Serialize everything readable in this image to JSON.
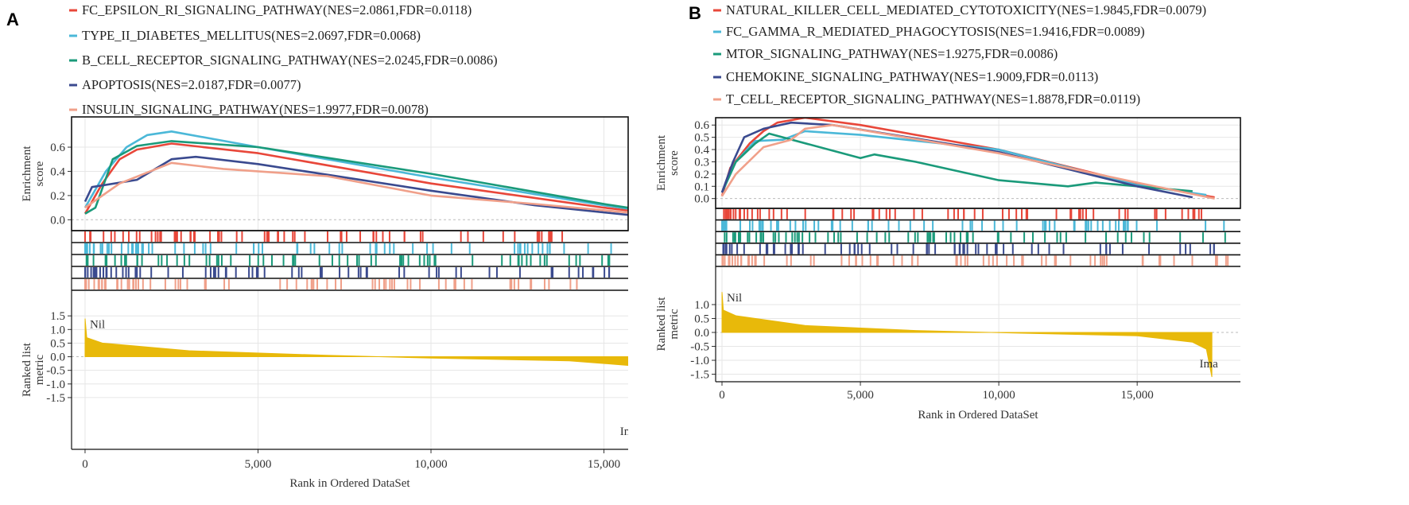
{
  "chart_data": [
    {
      "type": "line",
      "panel_label": "A",
      "xlabel": "Rank in Ordered DataSet",
      "ylabel_es": "Enrichment score",
      "ylabel_rank": [
        "Ranked list",
        "metric"
      ],
      "x_ticks": [
        0,
        5000,
        10000,
        15000
      ],
      "x_tick_labels": [
        "0",
        "5,000",
        "10,000",
        "15,000"
      ],
      "xlim": [
        -390,
        15700
      ],
      "es_ticks": [
        0.0,
        0.2,
        0.4,
        0.6
      ],
      "es_tick_labels": [
        "0.0",
        "0.2",
        "0.4",
        "0.6"
      ],
      "es_ylim": [
        -0.09,
        0.85
      ],
      "rank_ticks": [
        1.5,
        1.0,
        0.5,
        0.0,
        -0.5,
        -1.0,
        -1.5
      ],
      "rank_tick_labels": [
        "1.5",
        "1.0",
        "0.5",
        "0.0",
        "-0.5",
        "-1.0",
        "-1.5"
      ],
      "rank_ylim": [
        -3.4,
        2.44
      ],
      "top_annotation": "Nil",
      "bottom_annotation": "In",
      "series": [
        {
          "name": "FC_EPSILON_RI_SIGNALING_PATHWAY(NES=2.0861,FDR=0.0118)",
          "color": "#e8473a",
          "points": [
            [
              0,
              0.05
            ],
            [
              500,
              0.3
            ],
            [
              1000,
              0.5
            ],
            [
              1500,
              0.58
            ],
            [
              2500,
              0.63
            ],
            [
              5000,
              0.55
            ],
            [
              10000,
              0.3
            ],
            [
              15000,
              0.1
            ],
            [
              17500,
              0.02
            ]
          ]
        },
        {
          "name": "TYPE_II_DIABETES_MELLITUS(NES=2.0697,FDR=0.0068)",
          "color": "#4bb8d8",
          "points": [
            [
              0,
              0.1
            ],
            [
              600,
              0.4
            ],
            [
              1200,
              0.6
            ],
            [
              1800,
              0.7
            ],
            [
              2500,
              0.73
            ],
            [
              5000,
              0.6
            ],
            [
              10000,
              0.35
            ],
            [
              15000,
              0.12
            ],
            [
              17500,
              0.02
            ]
          ]
        },
        {
          "name": "B_CELL_RECEPTOR_SIGNALING_PATHWAY(NES=2.0245,FDR=0.0086)",
          "color": "#1a9a7a",
          "points": [
            [
              0,
              0.05
            ],
            [
              300,
              0.1
            ],
            [
              800,
              0.5
            ],
            [
              1500,
              0.61
            ],
            [
              2500,
              0.65
            ],
            [
              5000,
              0.6
            ],
            [
              10000,
              0.38
            ],
            [
              15000,
              0.13
            ],
            [
              17500,
              0.02
            ]
          ]
        },
        {
          "name": "APOPTOSIS(NES=2.0187,FDR=0.0077)",
          "color": "#3a4a8f",
          "points": [
            [
              0,
              0.15
            ],
            [
              200,
              0.27
            ],
            [
              1500,
              0.33
            ],
            [
              2500,
              0.5
            ],
            [
              3200,
              0.52
            ],
            [
              5000,
              0.46
            ],
            [
              10000,
              0.24
            ],
            [
              13000,
              0.12
            ],
            [
              15700,
              0.04
            ]
          ]
        },
        {
          "name": "INSULIN_SIGNALING_PATHWAY(NES=1.9977,FDR=0.0078)",
          "color": "#f0a08a",
          "points": [
            [
              0,
              0.1
            ],
            [
              1000,
              0.3
            ],
            [
              2500,
              0.47
            ],
            [
              4000,
              0.42
            ],
            [
              7000,
              0.36
            ],
            [
              10000,
              0.2
            ],
            [
              13000,
              0.13
            ],
            [
              15700,
              0.06
            ]
          ]
        }
      ],
      "ranked_metric": [
        [
          0,
          1.4
        ],
        [
          50,
          0.7
        ],
        [
          500,
          0.5
        ],
        [
          3000,
          0.22
        ],
        [
          7000,
          0.05
        ],
        [
          10000,
          -0.05
        ],
        [
          14000,
          -0.15
        ],
        [
          15700,
          -0.32
        ]
      ]
    },
    {
      "type": "line",
      "panel_label": "B",
      "xlabel": "Rank in Ordered DataSet",
      "ylabel_es": "Enrichment score",
      "ylabel_rank": [
        "Ranked list",
        "metric"
      ],
      "x_ticks": [
        0,
        5000,
        10000,
        15000
      ],
      "x_tick_labels": [
        "0",
        "5,000",
        "10,000",
        "15,000"
      ],
      "xlim": [
        -230,
        18730
      ],
      "es_ticks": [
        0.0,
        0.1,
        0.2,
        0.3,
        0.4,
        0.5,
        0.6
      ],
      "es_tick_labels": [
        "0.0",
        "0.1",
        "0.2",
        "0.3",
        "0.4",
        "0.5",
        "0.6"
      ],
      "es_ylim": [
        -0.08,
        0.66
      ],
      "rank_ticks": [
        1.0,
        0.5,
        0.0,
        -0.5,
        -1.0,
        -1.5
      ],
      "rank_tick_labels": [
        "1.0",
        "0.5",
        "0.0",
        "-0.5",
        "-1.0",
        "-1.5"
      ],
      "rank_ylim": [
        -1.77,
        2.37
      ],
      "top_annotation": "Nil",
      "bottom_annotation": "Ima",
      "series": [
        {
          "name": "NATURAL_KILLER_CELL_MEDIATED_CYTOTOXICITY(NES=1.9845,FDR=0.0079)",
          "color": "#e8473a",
          "points": [
            [
              0,
              0.02
            ],
            [
              300,
              0.25
            ],
            [
              1000,
              0.45
            ],
            [
              1500,
              0.55
            ],
            [
              2000,
              0.62
            ],
            [
              3000,
              0.66
            ],
            [
              5000,
              0.6
            ],
            [
              10000,
              0.4
            ],
            [
              15000,
              0.12
            ],
            [
              17800,
              0.01
            ]
          ]
        },
        {
          "name": "FC_GAMMA_R_MEDIATED_PHAGOCYTOSIS(NES=1.9416,FDR=0.0089)",
          "color": "#4bb8d8",
          "points": [
            [
              0,
              0.05
            ],
            [
              500,
              0.3
            ],
            [
              1200,
              0.47
            ],
            [
              2200,
              0.48
            ],
            [
              3000,
              0.55
            ],
            [
              5000,
              0.52
            ],
            [
              10000,
              0.4
            ],
            [
              15000,
              0.11
            ],
            [
              17500,
              0.03
            ]
          ]
        },
        {
          "name": "MTOR_SIGNALING_PATHWAY(NES=1.9275,FDR=0.0086)",
          "color": "#1a9a7a",
          "points": [
            [
              0,
              0.05
            ],
            [
              500,
              0.3
            ],
            [
              1200,
              0.45
            ],
            [
              1700,
              0.53
            ],
            [
              5000,
              0.33
            ],
            [
              5500,
              0.36
            ],
            [
              7000,
              0.3
            ],
            [
              10000,
              0.15
            ],
            [
              12500,
              0.1
            ],
            [
              13500,
              0.13
            ],
            [
              17000,
              0.06
            ]
          ]
        },
        {
          "name": "CHEMOKINE_SIGNALING_PATHWAY(NES=1.9009,FDR=0.0113)",
          "color": "#3a4a8f",
          "points": [
            [
              0,
              0.05
            ],
            [
              400,
              0.3
            ],
            [
              800,
              0.5
            ],
            [
              1500,
              0.57
            ],
            [
              2500,
              0.62
            ],
            [
              4000,
              0.6
            ],
            [
              10000,
              0.38
            ],
            [
              15000,
              0.1
            ],
            [
              17000,
              0.01
            ]
          ]
        },
        {
          "name": "T_CELL_RECEPTOR_SIGNALING_PATHWAY(NES=1.8878,FDR=0.0119)",
          "color": "#f0a08a",
          "points": [
            [
              0,
              0.02
            ],
            [
              500,
              0.2
            ],
            [
              1500,
              0.42
            ],
            [
              2500,
              0.48
            ],
            [
              3000,
              0.57
            ],
            [
              4000,
              0.6
            ],
            [
              10000,
              0.37
            ],
            [
              15000,
              0.13
            ],
            [
              17800,
              0.0
            ]
          ]
        }
      ],
      "ranked_metric": [
        [
          0,
          1.45
        ],
        [
          50,
          0.8
        ],
        [
          500,
          0.6
        ],
        [
          3000,
          0.25
        ],
        [
          7000,
          0.07
        ],
        [
          11000,
          -0.03
        ],
        [
          15000,
          -0.12
        ],
        [
          17000,
          -0.35
        ],
        [
          17500,
          -0.6
        ],
        [
          17700,
          -1.6
        ]
      ]
    }
  ],
  "ranked_fill_color": "#e8b90a"
}
